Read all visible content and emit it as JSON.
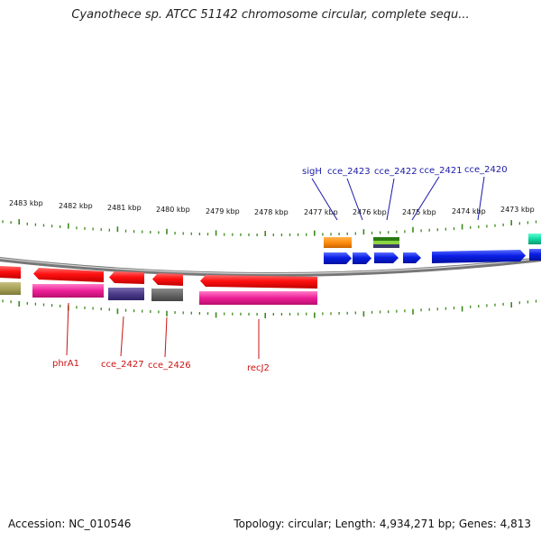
{
  "title": "Cyanothece sp. ATCC 51142 chromosome circular, complete sequ...",
  "footer": {
    "accession": "Accession: NC_010546",
    "summary": "Topology: circular; Length: 4,934,271 bp; Genes: 4,813"
  },
  "scale_labels": [
    "2483 kbp",
    "2482 kbp",
    "2481 kbp",
    "2480 kbp",
    "2479 kbp",
    "2478 kbp",
    "2477 kbp",
    "2476 kbp",
    "2475 kbp",
    "2474 kbp",
    "2473 kbp"
  ],
  "top_gene_labels": [
    "sigH",
    "cce_2423",
    "cce_2422",
    "cce_2421",
    "cce_2420"
  ],
  "bottom_gene_labels": [
    "phrA1",
    "cce_2427",
    "cce_2426",
    "recJ2"
  ],
  "colors": {
    "forward_gene": "#0a1ee6",
    "reverse_gene": "#ee1111",
    "forward_label": "#1a1aa8",
    "reverse_label": "#cc1111",
    "tick": "#3a8a1a",
    "backbone": "#888888"
  }
}
